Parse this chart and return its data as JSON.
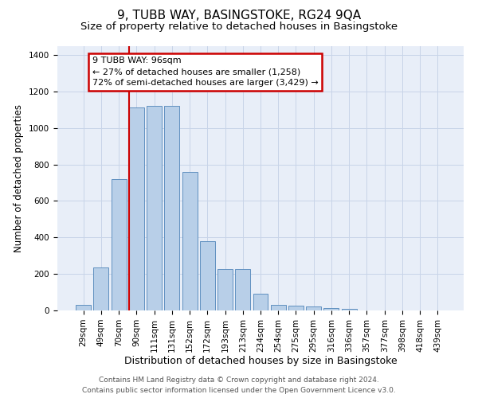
{
  "title": "9, TUBB WAY, BASINGSTOKE, RG24 9QA",
  "subtitle": "Size of property relative to detached houses in Basingstoke",
  "xlabel": "Distribution of detached houses by size in Basingstoke",
  "ylabel": "Number of detached properties",
  "categories": [
    "29sqm",
    "49sqm",
    "70sqm",
    "90sqm",
    "111sqm",
    "131sqm",
    "152sqm",
    "172sqm",
    "193sqm",
    "213sqm",
    "234sqm",
    "254sqm",
    "275sqm",
    "295sqm",
    "316sqm",
    "336sqm",
    "357sqm",
    "377sqm",
    "398sqm",
    "418sqm",
    "439sqm"
  ],
  "values": [
    30,
    235,
    720,
    1110,
    1120,
    1120,
    760,
    380,
    225,
    225,
    90,
    30,
    25,
    20,
    15,
    10,
    0,
    0,
    0,
    0,
    0
  ],
  "bar_color": "#b8cfe8",
  "bar_edge_color": "#6090c0",
  "property_line_x": 2.575,
  "property_line_color": "#cc0000",
  "annotation_text": "9 TUBB WAY: 96sqm\n← 27% of detached houses are smaller (1,258)\n72% of semi-detached houses are larger (3,429) →",
  "annotation_box_edgecolor": "#cc0000",
  "ylim": [
    0,
    1450
  ],
  "yticks": [
    0,
    200,
    400,
    600,
    800,
    1000,
    1200,
    1400
  ],
  "grid_color": "#c8d4e8",
  "bg_color": "#e8eef8",
  "footer_line1": "Contains HM Land Registry data © Crown copyright and database right 2024.",
  "footer_line2": "Contains public sector information licensed under the Open Government Licence v3.0.",
  "title_fontsize": 11,
  "subtitle_fontsize": 9.5,
  "xlabel_fontsize": 9,
  "ylabel_fontsize": 8.5,
  "tick_fontsize": 7.5,
  "annotation_fontsize": 8,
  "footer_fontsize": 6.5
}
